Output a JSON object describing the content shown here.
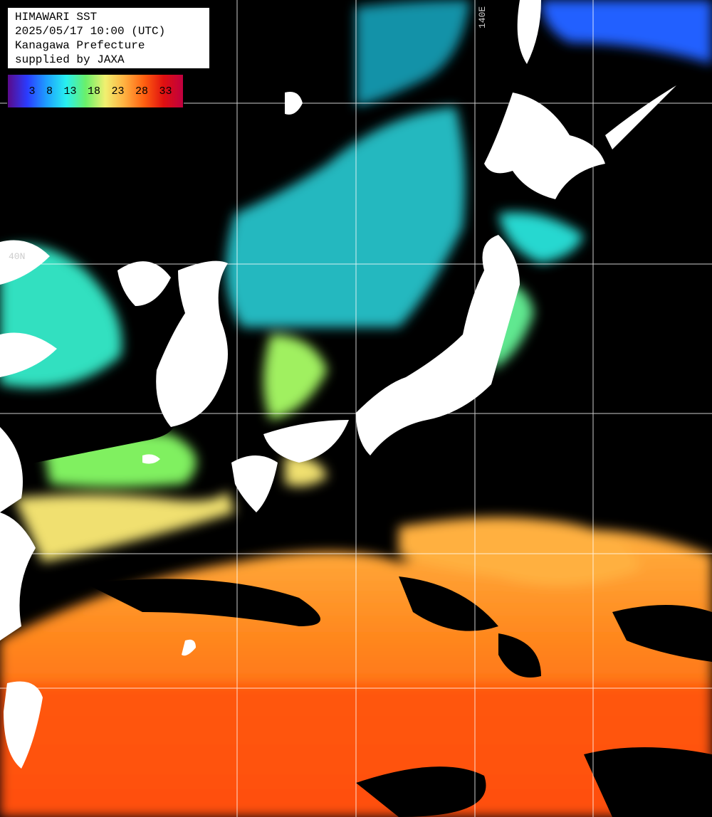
{
  "header": {
    "lines": [
      "HIMAWARI SST",
      "2025/05/17 10:00 (UTC)",
      "Kanagawa Prefecture",
      "supplied by JAXA"
    ]
  },
  "legend": {
    "ticks": [
      "3",
      "8",
      "13",
      "18",
      "23",
      "28",
      "33"
    ]
  },
  "grid_labels": {
    "latitude": "40N",
    "longitude": "140E"
  }
}
